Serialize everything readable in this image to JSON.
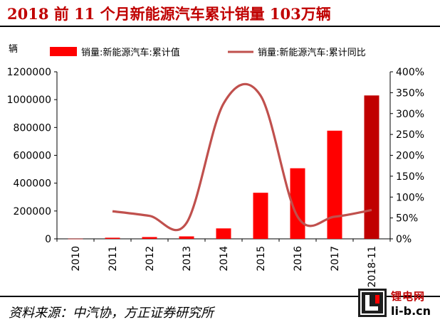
{
  "title": "2018 前 11 个月新能源汽车累计销量 103万辆",
  "source": "资料来源：中汽协，方正证券研究所",
  "logo": {
    "cn": "锂电网",
    "en": "li-b.cn"
  },
  "colors": {
    "bar": "#ff0000",
    "bar_highlight": "#c00000",
    "line": "#c0504d",
    "title": "#c00000"
  },
  "chart_data": {
    "type": "bar",
    "categories": [
      "2010",
      "2011",
      "2012",
      "2013",
      "2014",
      "2015",
      "2016",
      "2017",
      "2018-11"
    ],
    "y_unit_label": "辆",
    "ylim": [
      0,
      1200000
    ],
    "y_ticks": [
      "0",
      "200000",
      "400000",
      "600000",
      "800000",
      "1000000",
      "1200000"
    ],
    "y2lim": [
      0,
      4
    ],
    "y2_ticks": [
      "0%",
      "50%",
      "100%",
      "150%",
      "200%",
      "250%",
      "300%",
      "350%",
      "400%"
    ],
    "legend_position": "top",
    "series": [
      {
        "name": "销量:新能源汽车:累计值",
        "type": "bar",
        "values": [
          1000,
          8000,
          12800,
          17600,
          75000,
          331000,
          507000,
          777000,
          1030000
        ]
      },
      {
        "name": "销量:新能源汽车:累计同比",
        "type": "line",
        "axis": "right",
        "values": [
          null,
          0.66,
          0.55,
          0.38,
          3.24,
          3.43,
          0.53,
          0.53,
          0.69
        ]
      }
    ]
  }
}
